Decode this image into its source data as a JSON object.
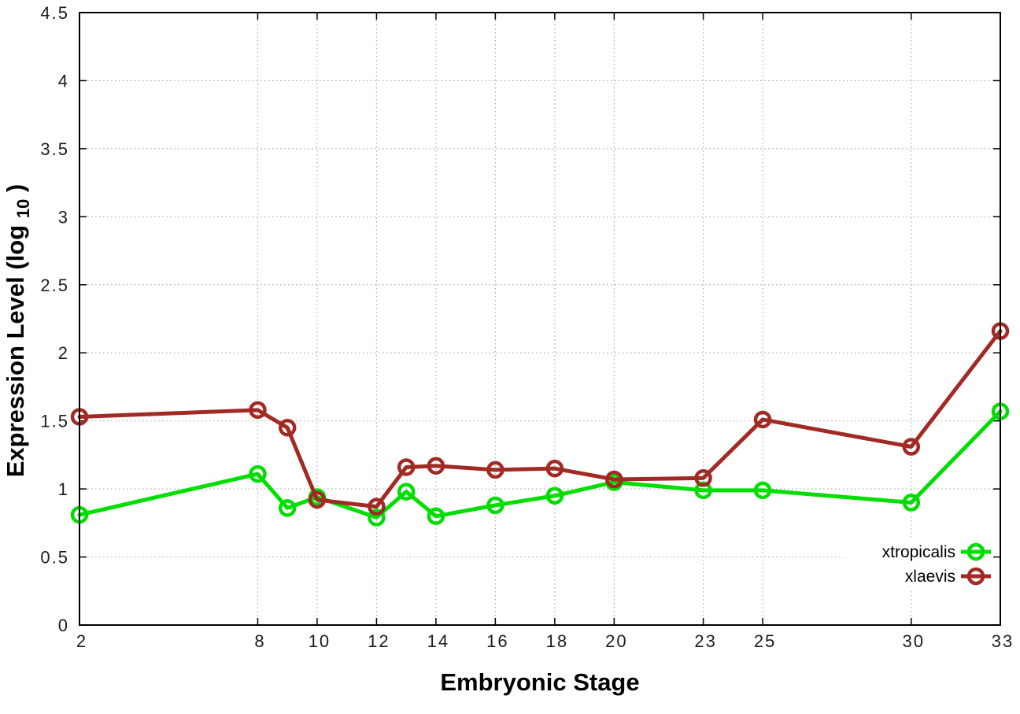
{
  "chart_data": {
    "type": "line",
    "title": "",
    "xlabel": "Embryonic Stage",
    "ylabel": "Expression Level (log10)",
    "ylabel_parts": {
      "pre": "Expression Level (log",
      "sub": "10",
      "post": ")"
    },
    "x": [
      2,
      8,
      9,
      10,
      12,
      13,
      14,
      16,
      18,
      20,
      23,
      25,
      30,
      33
    ],
    "x_ticks": [
      2,
      8,
      10,
      12,
      14,
      16,
      18,
      20,
      23,
      25,
      30,
      33
    ],
    "y_ticks": [
      0,
      0.5,
      1,
      1.5,
      2,
      2.5,
      3,
      3.5,
      4,
      4.5
    ],
    "xlim": [
      2,
      33
    ],
    "ylim": [
      0,
      4.5
    ],
    "grid": "dotted",
    "grid_color": "#adadad",
    "axis_color": "#000000",
    "background": "#ffffff",
    "legend_position": "inside bottom-right",
    "marker": "open-circle",
    "series": [
      {
        "name": "xtropicalis",
        "color": "#00DE00",
        "values": [
          0.81,
          1.11,
          0.86,
          0.94,
          0.79,
          0.98,
          0.8,
          0.88,
          0.95,
          1.05,
          0.99,
          0.99,
          0.9,
          1.57
        ]
      },
      {
        "name": "xlaevis",
        "color": "#A12A24",
        "values": [
          1.53,
          1.58,
          1.45,
          0.92,
          0.87,
          1.16,
          1.17,
          1.14,
          1.15,
          1.07,
          1.08,
          1.51,
          1.31,
          2.16
        ]
      }
    ]
  }
}
